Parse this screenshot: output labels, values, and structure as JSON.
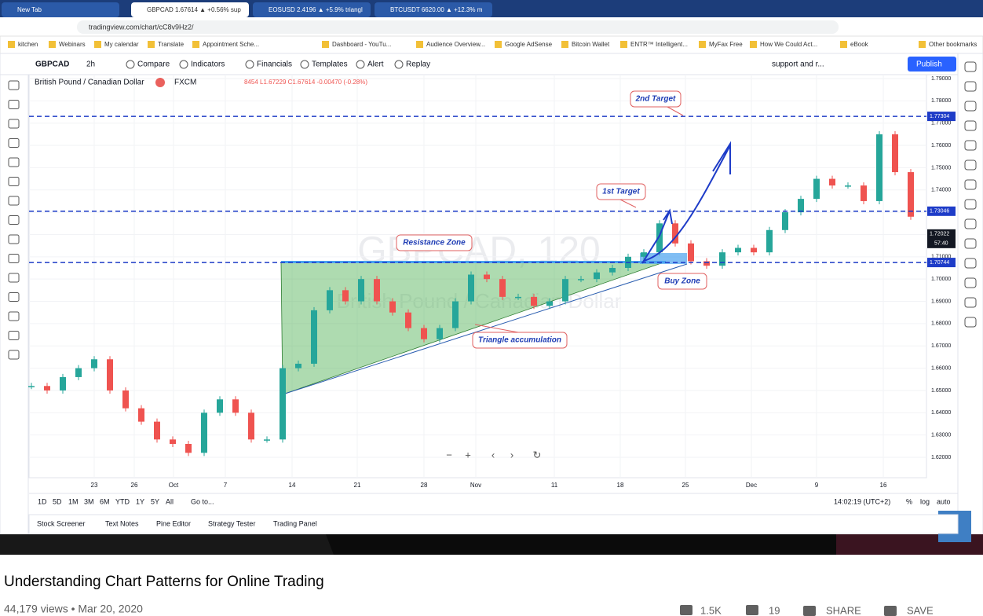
{
  "browser": {
    "tabs": [
      "New Tab",
      "GBPCAD 1.67614 ▲ +0.56% sup",
      "EOSUSD 2.4196 ▲ +5.9% triangl",
      "BTCUSDT 6620.00 ▲ +12.3% m"
    ],
    "url": "tradingview.com/chart/cC8v9Hz2/",
    "bookmarks": [
      "kitchen",
      "Webinars",
      "My calendar",
      "Translate",
      "Appointment Sche...",
      "Dashboard - YouTu...",
      "Audience Overview...",
      "Google AdSense",
      "Bitcoin Wallet",
      "ENTR™ Intelligent...",
      "MyFax Free",
      "How We Could Act...",
      "eBook",
      "Other bookmarks"
    ]
  },
  "toolbar": {
    "symbol": "GBPCAD",
    "interval": "2h",
    "items": [
      "Compare",
      "Indicators",
      "Financials",
      "Templates",
      "Alert",
      "Replay"
    ],
    "layout_name": "support and r...",
    "publish": "Publish"
  },
  "legend": {
    "name": "British Pound / Canadian Dollar",
    "exchange": "FXCM",
    "values": "8454 L1.67229 C1.67614 -0.00470 (-0.28%)"
  },
  "chart": {
    "watermark": "GBPCAD, 120",
    "watermark_sub": "British Pound / Canadian Dollar",
    "ylim": [
      1.62,
      1.79
    ],
    "yticks": [
      {
        "value": 1.79,
        "label": "1.79000"
      },
      {
        "value": 1.78,
        "label": "1.78000"
      },
      {
        "value": 1.77,
        "label": "1.77000"
      },
      {
        "value": 1.76,
        "label": "1.76000"
      },
      {
        "value": 1.75,
        "label": "1.75000"
      },
      {
        "value": 1.74,
        "label": "1.74000"
      },
      {
        "value": 1.73,
        "label": "1.73000"
      },
      {
        "value": 1.72,
        "label": "1.72000"
      },
      {
        "value": 1.71,
        "label": "1.71000"
      },
      {
        "value": 1.7,
        "label": "1.70000"
      },
      {
        "value": 1.69,
        "label": "1.69000"
      },
      {
        "value": 1.68,
        "label": "1.68000"
      },
      {
        "value": 1.67,
        "label": "1.67000"
      },
      {
        "value": 1.66,
        "label": "1.66000"
      },
      {
        "value": 1.65,
        "label": "1.65000"
      },
      {
        "value": 1.64,
        "label": "1.64000"
      },
      {
        "value": 1.63,
        "label": "1.63000"
      },
      {
        "value": 1.62,
        "label": "1.62000"
      }
    ],
    "levels": [
      1.77304,
      1.73046,
      1.70744
    ],
    "last_price": 1.72022,
    "countdown": "57:40",
    "xticks": [
      "23",
      "26",
      "Oct",
      "7",
      "14",
      "21",
      "28",
      "Nov",
      "11",
      "18",
      "25",
      "Dec",
      "9",
      "16"
    ],
    "closes": [
      1.652,
      1.65,
      1.656,
      1.66,
      1.664,
      1.65,
      1.642,
      1.636,
      1.628,
      1.626,
      1.622,
      1.64,
      1.646,
      1.64,
      1.628,
      1.628,
      1.66,
      1.662,
      1.686,
      1.695,
      1.69,
      1.7,
      1.69,
      1.685,
      1.678,
      1.673,
      1.678,
      1.69,
      1.702,
      1.7,
      1.692,
      1.692,
      1.688,
      1.69,
      1.7,
      1.7,
      1.703,
      1.705,
      1.71,
      1.712,
      1.725,
      1.716,
      1.708,
      1.706,
      1.712,
      1.714,
      1.712,
      1.722,
      1.73,
      1.736,
      1.745,
      1.742,
      1.742,
      1.735,
      1.765,
      1.748,
      1.728
    ],
    "annotations": [
      "2nd Target",
      "1st Target",
      "Resistance Zone",
      "Buy Zone",
      "Triangle accumulation"
    ]
  },
  "ranges": [
    "1D",
    "5D",
    "1M",
    "3M",
    "6M",
    "YTD",
    "1Y",
    "5Y",
    "All"
  ],
  "goto": "Go to...",
  "clock": "14:02:19 (UTC+2)",
  "scale_opts": [
    "%",
    "log",
    "auto"
  ],
  "panels": [
    "Stock Screener",
    "Text Notes",
    "Pine Editor",
    "Strategy Tester",
    "Trading Panel"
  ],
  "video": {
    "title": "Understanding Chart Patterns for Online Trading",
    "meta": "44,179 views • Mar 20, 2020",
    "likes": "1.5K",
    "dislikes": "19",
    "share": "SHARE",
    "save": "SAVE"
  }
}
